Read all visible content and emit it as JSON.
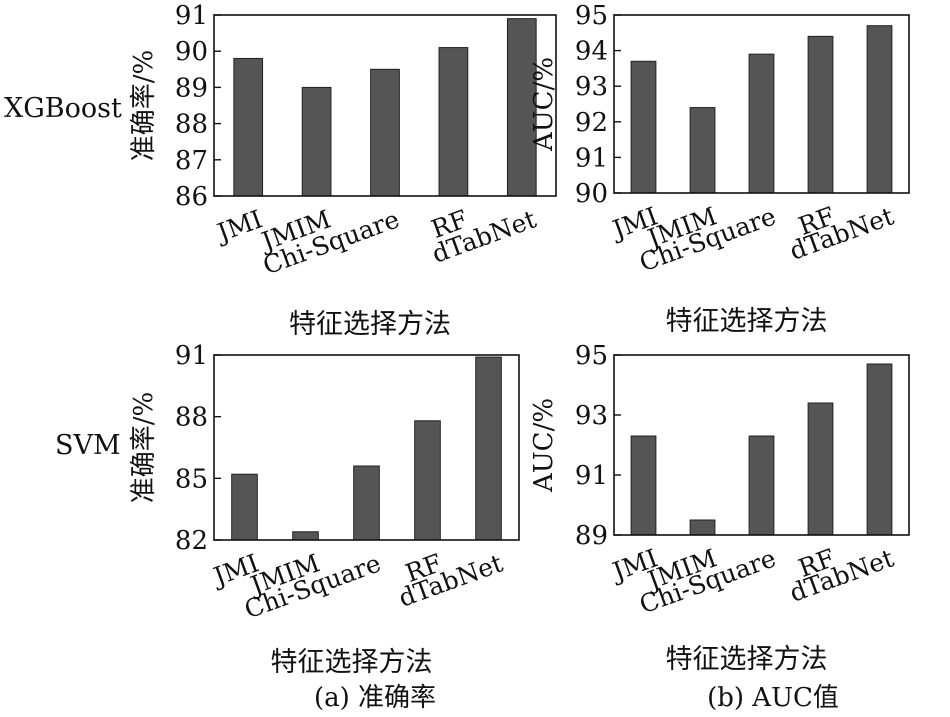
{
  "row_labels": {
    "top": "XGBoost",
    "bottom": "SVM"
  },
  "captions": {
    "a": "(a) 准确率",
    "b": "(b) AUC值"
  },
  "chart_data": [
    {
      "id": "xgb_acc",
      "type": "bar",
      "categories": [
        "JMI",
        "JMIM",
        "Chi-Square",
        "RF",
        "dTabNet"
      ],
      "values": [
        89.8,
        89.0,
        89.5,
        90.1,
        90.9
      ],
      "ylabel": "准确率/%",
      "xlabel": "特征选择方法",
      "ylim": [
        86,
        91
      ],
      "yticks": [
        86,
        87,
        88,
        89,
        90,
        91
      ],
      "bar_color": "#555555",
      "grid": false
    },
    {
      "id": "xgb_auc",
      "type": "bar",
      "categories": [
        "JMI",
        "JMIM",
        "Chi-Square",
        "RF",
        "dTabNet"
      ],
      "values": [
        93.7,
        92.4,
        93.9,
        94.4,
        94.7
      ],
      "ylabel": "AUC/%",
      "xlabel": "特征选择方法",
      "ylim": [
        90,
        95
      ],
      "yticks": [
        90,
        91,
        92,
        93,
        94,
        95
      ],
      "bar_color": "#555555",
      "grid": false
    },
    {
      "id": "svm_acc",
      "type": "bar",
      "categories": [
        "JMI",
        "JMIM",
        "Chi-Square",
        "RF",
        "dTabNet"
      ],
      "values": [
        85.2,
        82.4,
        85.6,
        87.8,
        90.9
      ],
      "ylabel": "准确率/%",
      "xlabel": "特征选择方法",
      "ylim": [
        82,
        91
      ],
      "yticks": [
        82,
        85,
        88,
        91
      ],
      "bar_color": "#555555",
      "grid": false
    },
    {
      "id": "svm_auc",
      "type": "bar",
      "categories": [
        "JMI",
        "JMIM",
        "Chi-Square",
        "RF",
        "dTabNet"
      ],
      "values": [
        92.3,
        89.5,
        92.3,
        93.4,
        94.7
      ],
      "ylabel": "AUC/%",
      "xlabel": "特征选择方法",
      "ylim": [
        89,
        95
      ],
      "yticks": [
        89,
        91,
        93,
        95
      ],
      "bar_color": "#555555",
      "grid": false
    }
  ]
}
